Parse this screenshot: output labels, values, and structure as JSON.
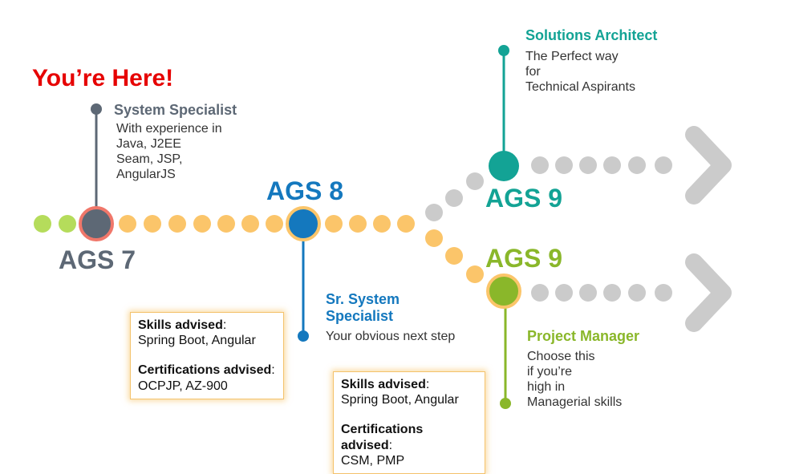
{
  "header": {
    "you_are_here": "You’re Here!"
  },
  "stages": {
    "ags7": {
      "label": "AGS 7",
      "title": "System Specialist",
      "desc": "With experience in\nJava, J2EE\nSeam, JSP,\nAngularJS"
    },
    "ags8": {
      "label": "AGS 8",
      "title": "Sr. System\nSpecialist",
      "desc": "Your obvious next step"
    },
    "ags9_architect": {
      "label": "AGS 9",
      "title": "Solutions Architect",
      "desc": "The Perfect way\nfor\nTechnical Aspirants"
    },
    "ags9_manager": {
      "label": "AGS 9",
      "title": "Project Manager",
      "desc": "Choose this\nif you’re\nhigh in\nManagerial skills"
    }
  },
  "advice_boxes": [
    {
      "skills_label": "Skills advised",
      "skills": "Spring Boot, Angular",
      "certs_label": "Certifications advised",
      "certs": "OCPJP, AZ-900"
    },
    {
      "skills_label": "Skills advised",
      "skills": "Spring Boot, Angular",
      "certs_label": "Certifications advised",
      "certs": "CSM, PMP"
    }
  ],
  "colors": {
    "red": "#e60000",
    "slate": "#5d6875",
    "blue": "#1478be",
    "teal": "#13a395",
    "green": "#8ab72a",
    "light_green": "#b5dc5b",
    "orange_dot": "#fbc56a",
    "gray_dot": "#cbcbcb",
    "box_border": "#f4c26b"
  },
  "icons": {
    "arrow": "chevron-right-icon"
  }
}
